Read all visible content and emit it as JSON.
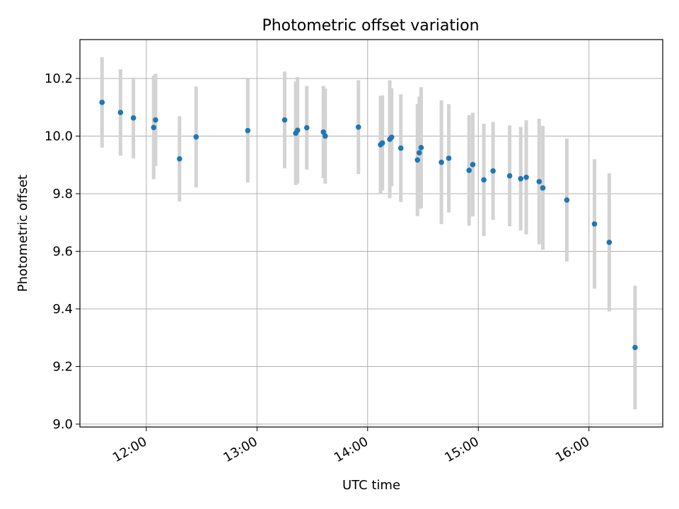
{
  "chart_data": {
    "type": "scatter",
    "title": "Photometric offset variation",
    "xlabel": "UTC time",
    "ylabel": "Photometric offset",
    "x_format": "HH:MM",
    "xlim": [
      "11:24",
      "16:40"
    ],
    "ylim": [
      8.99,
      10.335
    ],
    "grid": true,
    "x_ticks": [
      "12:00",
      "13:00",
      "14:00",
      "15:00",
      "16:00"
    ],
    "y_ticks": [
      "9.0",
      "9.2",
      "9.4",
      "9.6",
      "9.8",
      "10.0",
      "10.2"
    ],
    "colors": {
      "marker": "#1f77b4",
      "errorbar": "#d3d3d3",
      "grid": "#b0b0b0",
      "axes": "#000000"
    },
    "series": [
      {
        "points": [
          {
            "x": "11:36",
            "y": 10.117,
            "err": 0.157
          },
          {
            "x": "11:46",
            "y": 10.082,
            "err": 0.15
          },
          {
            "x": "11:53",
            "y": 10.063,
            "err": 0.14
          },
          {
            "x": "12:04",
            "y": 10.03,
            "err": 0.18
          },
          {
            "x": "12:05",
            "y": 10.056,
            "err": 0.16
          },
          {
            "x": "12:18",
            "y": 9.921,
            "err": 0.148
          },
          {
            "x": "12:27",
            "y": 9.997,
            "err": 0.175
          },
          {
            "x": "12:55",
            "y": 10.019,
            "err": 0.18
          },
          {
            "x": "13:15",
            "y": 10.056,
            "err": 0.168
          },
          {
            "x": "13:21",
            "y": 10.01,
            "err": 0.18
          },
          {
            "x": "13:22",
            "y": 10.02,
            "err": 0.185
          },
          {
            "x": "13:27",
            "y": 10.029,
            "err": 0.145
          },
          {
            "x": "13:36",
            "y": 10.014,
            "err": 0.16
          },
          {
            "x": "13:37",
            "y": 10.0,
            "err": 0.165
          },
          {
            "x": "13:55",
            "y": 10.031,
            "err": 0.163
          },
          {
            "x": "14:07",
            "y": 9.97,
            "err": 0.17
          },
          {
            "x": "14:08",
            "y": 9.976,
            "err": 0.165
          },
          {
            "x": "14:12",
            "y": 9.989,
            "err": 0.205
          },
          {
            "x": "14:13",
            "y": 9.996,
            "err": 0.17
          },
          {
            "x": "14:18",
            "y": 9.958,
            "err": 0.187
          },
          {
            "x": "14:27",
            "y": 9.917,
            "err": 0.195
          },
          {
            "x": "14:28",
            "y": 9.942,
            "err": 0.195
          },
          {
            "x": "14:29",
            "y": 9.96,
            "err": 0.21
          },
          {
            "x": "14:40",
            "y": 9.909,
            "err": 0.215
          },
          {
            "x": "14:44",
            "y": 9.923,
            "err": 0.188
          },
          {
            "x": "14:55",
            "y": 9.881,
            "err": 0.192
          },
          {
            "x": "14:57",
            "y": 9.901,
            "err": 0.18
          },
          {
            "x": "15:03",
            "y": 9.848,
            "err": 0.195
          },
          {
            "x": "15:08",
            "y": 9.879,
            "err": 0.17
          },
          {
            "x": "15:17",
            "y": 9.862,
            "err": 0.175
          },
          {
            "x": "15:23",
            "y": 9.852,
            "err": 0.18
          },
          {
            "x": "15:26",
            "y": 9.857,
            "err": 0.198
          },
          {
            "x": "15:33",
            "y": 9.842,
            "err": 0.218
          },
          {
            "x": "15:35",
            "y": 9.82,
            "err": 0.215
          },
          {
            "x": "15:48",
            "y": 9.778,
            "err": 0.213
          },
          {
            "x": "16:03",
            "y": 9.695,
            "err": 0.225
          },
          {
            "x": "16:11",
            "y": 9.631,
            "err": 0.24
          },
          {
            "x": "16:25",
            "y": 9.266,
            "err": 0.215
          }
        ]
      }
    ]
  }
}
